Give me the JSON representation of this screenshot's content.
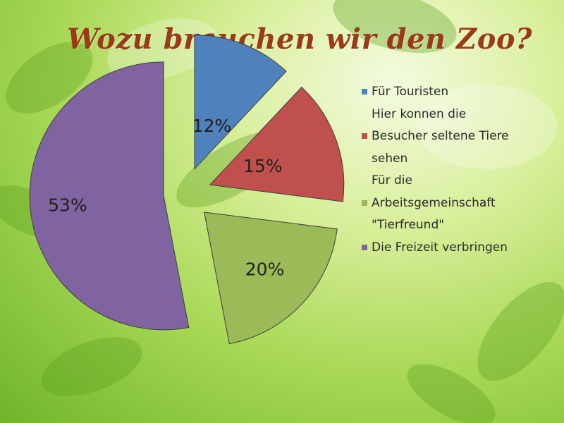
{
  "title": "Wozu brauchen wir den Zoo?",
  "chart_data": {
    "type": "pie",
    "exploded": true,
    "legend_position": "right",
    "slices": [
      {
        "legend_lines": [
          "Für Touristen"
        ],
        "value": 12,
        "label": "12%",
        "color": "#4f81bd"
      },
      {
        "legend_lines": [
          "Hier konnen die",
          "Besucher seltene Tiere",
          "sehen"
        ],
        "value": 15,
        "label": "15%",
        "color": "#c0504d"
      },
      {
        "legend_lines": [
          "Für die",
          "Arbeitsgemeinschaft",
          "\"Tierfreund\""
        ],
        "value": 20,
        "label": "20%",
        "color": "#9bbb59"
      },
      {
        "legend_lines": [
          "Die Freizeit verbringen"
        ],
        "value": 53,
        "label": "53%",
        "color": "#8064a2"
      }
    ]
  }
}
